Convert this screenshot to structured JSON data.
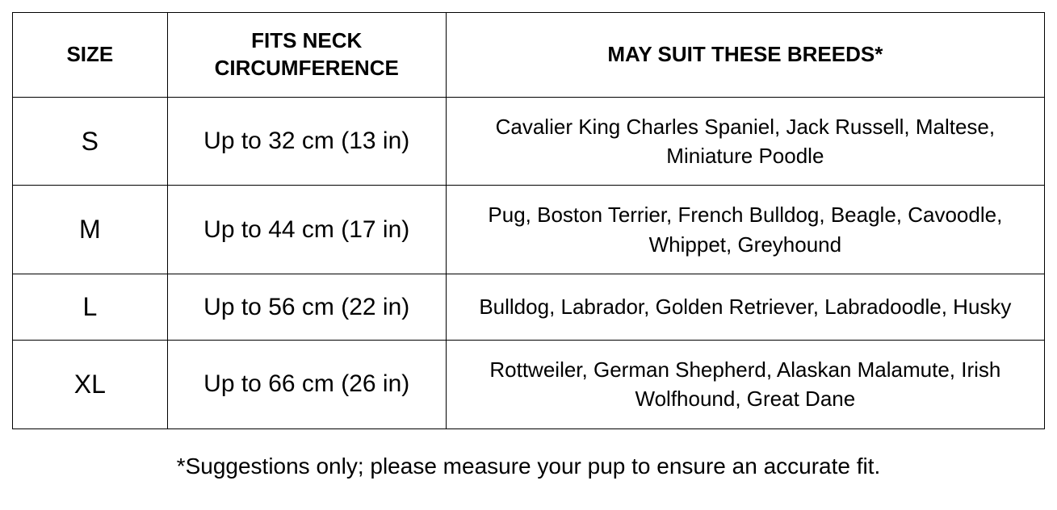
{
  "table": {
    "columns": [
      {
        "label": "SIZE",
        "width_pct": 15
      },
      {
        "label": "FITS NECK CIRCUMFERENCE",
        "width_pct": 27
      },
      {
        "label": "MAY SUIT THESE BREEDS*",
        "width_pct": 58
      }
    ],
    "rows": [
      {
        "size": "S",
        "neck": "Up to 32 cm (13 in)",
        "breeds": "Cavalier King Charles Spaniel, Jack Russell, Maltese, Miniature Poodle"
      },
      {
        "size": "M",
        "neck": "Up to 44 cm (17 in)",
        "breeds": "Pug, Boston Terrier, French Bulldog, Beagle, Cavoodle, Whippet, Greyhound"
      },
      {
        "size": "L",
        "neck": "Up to 56 cm (22 in)",
        "breeds": "Bulldog, Labrador, Golden Retriever, Labradoodle, Husky"
      },
      {
        "size": "XL",
        "neck": "Up to 66 cm (26 in)",
        "breeds": "Rottweiler, German Shepherd, Alaskan Malamute, Irish Wolfhound, Great Dane"
      }
    ],
    "border_color": "#000000",
    "background_color": "#ffffff",
    "header_fontsize": 26,
    "cell_fontsize_size": 32,
    "cell_fontsize_neck": 30,
    "cell_fontsize_breeds": 26
  },
  "footnote": "*Suggestions only; please measure your pup to ensure an accurate fit.",
  "footnote_fontsize": 28
}
